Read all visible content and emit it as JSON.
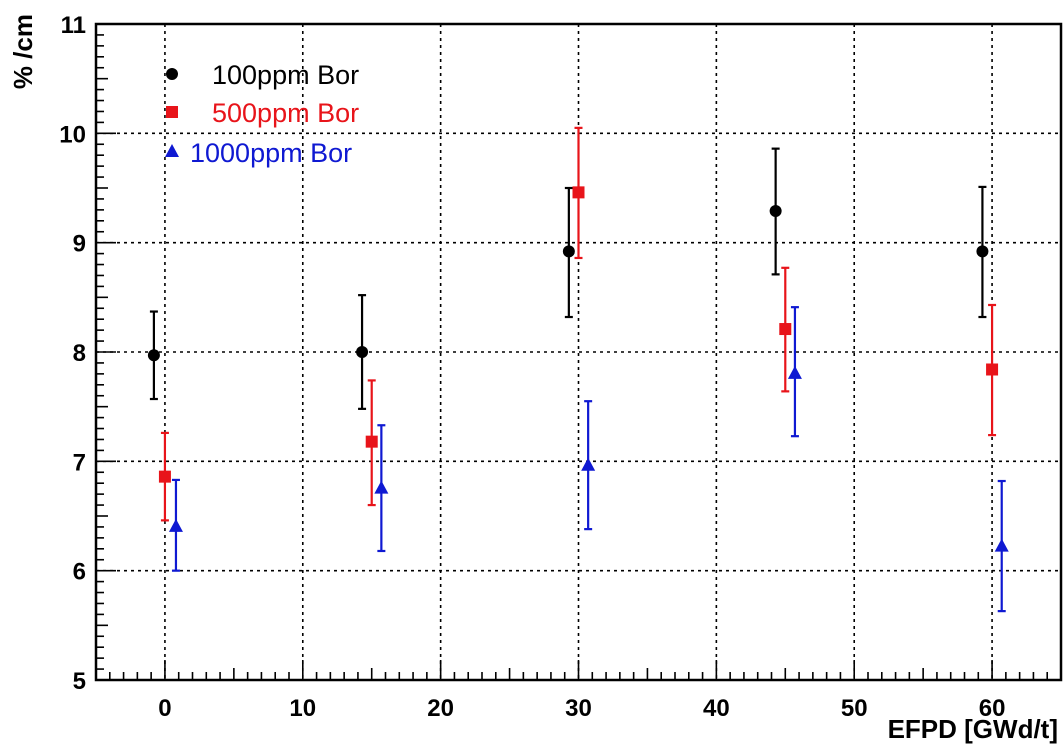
{
  "chart_data": {
    "type": "scatter",
    "title": "",
    "xlabel": "EFPD [GWd/t]",
    "ylabel": "% /cm",
    "xlim": [
      -5,
      65
    ],
    "ylim": [
      5,
      11
    ],
    "x_ticks": [
      0,
      10,
      20,
      30,
      40,
      50,
      60
    ],
    "y_ticks": [
      5,
      6,
      7,
      8,
      9,
      10,
      11
    ],
    "x_tick_labels": [
      "0",
      "10",
      "20",
      "30",
      "40",
      "50",
      "60"
    ],
    "y_tick_labels": [
      "5",
      "6",
      "7",
      "8",
      "9",
      "10",
      "11"
    ],
    "grid": true,
    "legend_position": "top-left",
    "series": [
      {
        "name": "100ppm Bor",
        "color": "#000000",
        "marker": "circle",
        "x": [
          -0.8,
          14.3,
          29.3,
          44.3,
          59.3
        ],
        "y": [
          7.97,
          8.0,
          8.92,
          9.29,
          8.92
        ],
        "err_low": [
          0.4,
          0.52,
          0.6,
          0.58,
          0.6
        ],
        "err_high": [
          0.4,
          0.52,
          0.58,
          0.57,
          0.59
        ]
      },
      {
        "name": "500ppm Bor",
        "color": "#e8141a",
        "marker": "square",
        "x": [
          0.0,
          15.0,
          30.0,
          45.0,
          60.0
        ],
        "y": [
          6.86,
          7.18,
          9.46,
          8.21,
          7.84
        ],
        "err_low": [
          0.4,
          0.58,
          0.6,
          0.57,
          0.6
        ],
        "err_high": [
          0.4,
          0.56,
          0.59,
          0.56,
          0.59
        ]
      },
      {
        "name": "1000ppm Bor",
        "color": "#0f19d2",
        "marker": "triangle",
        "x": [
          0.8,
          15.7,
          30.7,
          45.7,
          60.7
        ],
        "y": [
          6.4,
          6.75,
          6.96,
          7.8,
          6.22
        ],
        "err_low": [
          0.4,
          0.57,
          0.58,
          0.57,
          0.59
        ],
        "err_high": [
          0.43,
          0.58,
          0.59,
          0.61,
          0.6
        ]
      }
    ]
  }
}
